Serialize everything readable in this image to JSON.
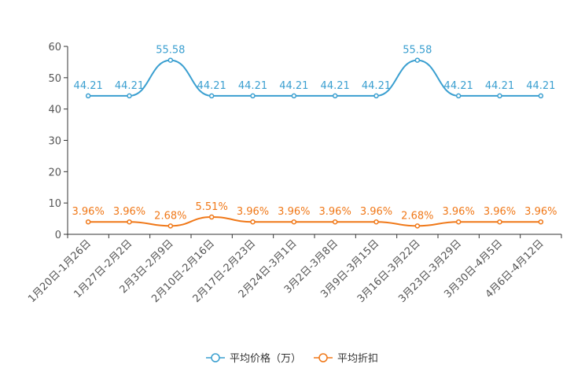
{
  "chart_data": {
    "type": "line",
    "categories": [
      "1月20日-1月26日",
      "1月27日-2月2日",
      "2月3日-2月9日",
      "2月10日-2月16日",
      "2月17日-2月23日",
      "2月24日-3月1日",
      "3月2日-3月8日",
      "3月9日-3月15日",
      "3月16日-3月22日",
      "3月23日-3月29日",
      "3月30日-4月5日",
      "4月6日-4月12日"
    ],
    "series": [
      {
        "name": "平均价格（万）",
        "color": "#3a9fd0",
        "values": [
          44.21,
          44.21,
          55.58,
          44.21,
          44.21,
          44.21,
          44.21,
          44.21,
          55.58,
          44.21,
          44.21,
          44.21
        ],
        "labels": [
          "44.21",
          "44.21",
          "55.58",
          "44.21",
          "44.21",
          "44.21",
          "44.21",
          "44.21",
          "55.58",
          "44.21",
          "44.21",
          "44.21"
        ]
      },
      {
        "name": "平均折扣",
        "color": "#f07818",
        "values": [
          3.96,
          3.96,
          2.68,
          5.51,
          3.96,
          3.96,
          3.96,
          3.96,
          2.68,
          3.96,
          3.96,
          3.96
        ],
        "labels": [
          "3.96%",
          "3.96%",
          "2.68%",
          "5.51%",
          "3.96%",
          "3.96%",
          "3.96%",
          "3.96%",
          "2.68%",
          "3.96%",
          "3.96%",
          "3.96%"
        ]
      }
    ],
    "y_ticks": [
      "0",
      "10",
      "20",
      "30",
      "40",
      "50",
      "60"
    ],
    "ylim": [
      0,
      60
    ],
    "legend_position": "bottom-center"
  }
}
